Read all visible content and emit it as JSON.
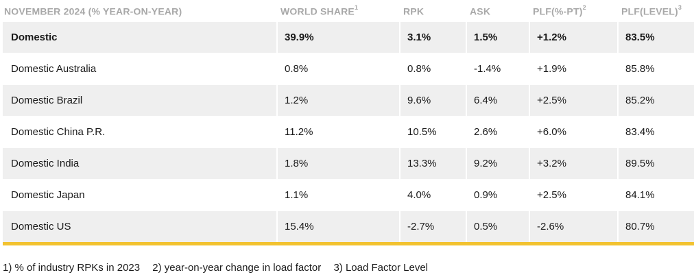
{
  "table": {
    "headers": [
      {
        "label": "NOVEMBER 2024 (% YEAR-ON-YEAR)",
        "sup": ""
      },
      {
        "label": "WORLD SHARE",
        "sup": "1"
      },
      {
        "label": "RPK",
        "sup": ""
      },
      {
        "label": "ASK",
        "sup": ""
      },
      {
        "label": "PLF(%-PT)",
        "sup": "2"
      },
      {
        "label": "PLF(LEVEL)",
        "sup": "3"
      }
    ],
    "rows": [
      [
        "Domestic",
        "39.9%",
        "3.1%",
        "1.5%",
        "+1.2%",
        "83.5%"
      ],
      [
        "Domestic Australia",
        "0.8%",
        "0.8%",
        "-1.4%",
        "+1.9%",
        "85.8%"
      ],
      [
        "Domestic Brazil",
        "1.2%",
        "9.6%",
        "6.4%",
        "+2.5%",
        "85.2%"
      ],
      [
        "Domestic China P.R.",
        "11.2%",
        "10.5%",
        "2.6%",
        "+6.0%",
        "83.4%"
      ],
      [
        "Domestic India",
        "1.8%",
        "13.3%",
        "9.2%",
        "+3.2%",
        "89.5%"
      ],
      [
        "Domestic Japan",
        "1.1%",
        "4.0%",
        "0.9%",
        "+2.5%",
        "84.1%"
      ],
      [
        "Domestic US",
        "15.4%",
        "-2.7%",
        "0.5%",
        "-2.6%",
        "80.7%"
      ]
    ]
  },
  "footnotes": [
    "1) % of industry RPKs in 2023",
    "2) year-on-year change in load factor",
    "3) Load Factor Level"
  ],
  "colors": {
    "header_text": "#a8a8a8",
    "row_shade": "#efefef",
    "accent_rule": "#f2c230"
  }
}
